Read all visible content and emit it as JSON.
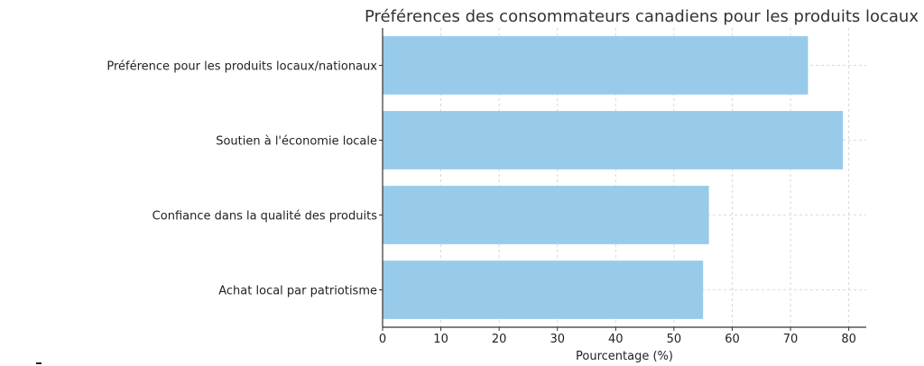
{
  "chart_data": {
    "type": "bar",
    "orientation": "horizontal",
    "title": "Préférences des consommateurs canadiens pour les produits locaux",
    "xlabel": "Pourcentage (%)",
    "ylabel": "",
    "categories": [
      "Préférence pour les produits locaux/nationaux",
      "Soutien à l'économie locale",
      "Confiance dans la qualité des produits",
      "Achat local par patriotisme"
    ],
    "values": [
      73,
      79,
      56,
      55
    ],
    "xlim": [
      0,
      83
    ],
    "xticks": [
      0,
      10,
      20,
      30,
      40,
      50,
      60,
      70,
      80
    ],
    "grid": true,
    "bar_color": "#97CBE9"
  }
}
